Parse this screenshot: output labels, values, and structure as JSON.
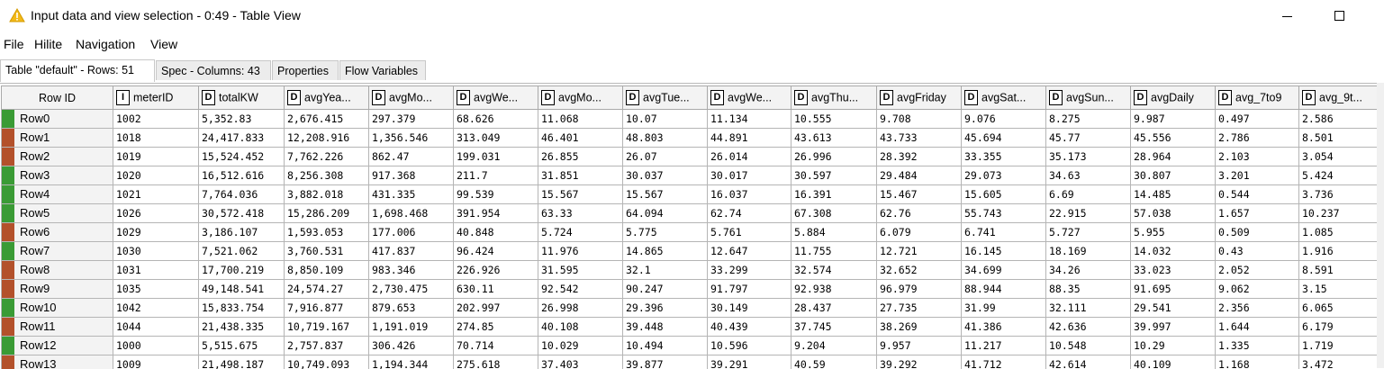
{
  "window": {
    "title": "Input data and view selection - 0:49 - Table View",
    "icon": "warning-triangle-icon"
  },
  "menu": [
    "File",
    "Hilite",
    "Navigation",
    "View"
  ],
  "tabs": [
    {
      "label": "Table \"default\" - Rows: 51",
      "active": true
    },
    {
      "label": "Spec - Columns: 43",
      "active": false
    },
    {
      "label": "Properties",
      "active": false
    },
    {
      "label": "Flow Variables",
      "active": false
    }
  ],
  "table": {
    "row_id_header": "Row ID",
    "columns": [
      {
        "type": "I",
        "label": "meterID"
      },
      {
        "type": "D",
        "label": "totalKW"
      },
      {
        "type": "D",
        "label": "avgYea..."
      },
      {
        "type": "D",
        "label": "avgMo..."
      },
      {
        "type": "D",
        "label": "avgWe..."
      },
      {
        "type": "D",
        "label": "avgMo..."
      },
      {
        "type": "D",
        "label": "avgTue..."
      },
      {
        "type": "D",
        "label": "avgWe..."
      },
      {
        "type": "D",
        "label": "avgThu..."
      },
      {
        "type": "D",
        "label": "avgFriday"
      },
      {
        "type": "D",
        "label": "avgSat..."
      },
      {
        "type": "D",
        "label": "avgSun..."
      },
      {
        "type": "D",
        "label": "avgDaily"
      },
      {
        "type": "D",
        "label": "avg_7to9"
      },
      {
        "type": "D",
        "label": "avg_9t..."
      }
    ],
    "colors": {
      "green": "#3a9b35",
      "orange": "#b3512b"
    },
    "rows": [
      {
        "id": "Row0",
        "color": "#3a9b35",
        "cells": [
          "1002",
          "5,352.83",
          "2,676.415",
          "297.379",
          "68.626",
          "11.068",
          "10.07",
          "11.134",
          "10.555",
          "9.708",
          "9.076",
          "8.275",
          "9.987",
          "0.497",
          "2.586"
        ]
      },
      {
        "id": "Row1",
        "color": "#b3512b",
        "cells": [
          "1018",
          "24,417.833",
          "12,208.916",
          "1,356.546",
          "313.049",
          "46.401",
          "48.803",
          "44.891",
          "43.613",
          "43.733",
          "45.694",
          "45.77",
          "45.556",
          "2.786",
          "8.501"
        ]
      },
      {
        "id": "Row2",
        "color": "#b3512b",
        "cells": [
          "1019",
          "15,524.452",
          "7,762.226",
          "862.47",
          "199.031",
          "26.855",
          "26.07",
          "26.014",
          "26.996",
          "28.392",
          "33.355",
          "35.173",
          "28.964",
          "2.103",
          "3.054"
        ]
      },
      {
        "id": "Row3",
        "color": "#3a9b35",
        "cells": [
          "1020",
          "16,512.616",
          "8,256.308",
          "917.368",
          "211.7",
          "31.851",
          "30.037",
          "30.017",
          "30.597",
          "29.484",
          "29.073",
          "34.63",
          "30.807",
          "3.201",
          "5.424"
        ]
      },
      {
        "id": "Row4",
        "color": "#3a9b35",
        "cells": [
          "1021",
          "7,764.036",
          "3,882.018",
          "431.335",
          "99.539",
          "15.567",
          "15.567",
          "16.037",
          "16.391",
          "15.467",
          "15.605",
          "6.69",
          "14.485",
          "0.544",
          "3.736"
        ]
      },
      {
        "id": "Row5",
        "color": "#3a9b35",
        "cells": [
          "1026",
          "30,572.418",
          "15,286.209",
          "1,698.468",
          "391.954",
          "63.33",
          "64.094",
          "62.74",
          "67.308",
          "62.76",
          "55.743",
          "22.915",
          "57.038",
          "1.657",
          "10.237"
        ]
      },
      {
        "id": "Row6",
        "color": "#b3512b",
        "cells": [
          "1029",
          "3,186.107",
          "1,593.053",
          "177.006",
          "40.848",
          "5.724",
          "5.775",
          "5.761",
          "5.884",
          "6.079",
          "6.741",
          "5.727",
          "5.955",
          "0.509",
          "1.085"
        ]
      },
      {
        "id": "Row7",
        "color": "#3a9b35",
        "cells": [
          "1030",
          "7,521.062",
          "3,760.531",
          "417.837",
          "96.424",
          "11.976",
          "14.865",
          "12.647",
          "11.755",
          "12.721",
          "16.145",
          "18.169",
          "14.032",
          "0.43",
          "1.916"
        ]
      },
      {
        "id": "Row8",
        "color": "#b3512b",
        "cells": [
          "1031",
          "17,700.219",
          "8,850.109",
          "983.346",
          "226.926",
          "31.595",
          "32.1",
          "33.299",
          "32.574",
          "32.652",
          "34.699",
          "34.26",
          "33.023",
          "2.052",
          "8.591"
        ]
      },
      {
        "id": "Row9",
        "color": "#b3512b",
        "cells": [
          "1035",
          "49,148.541",
          "24,574.27",
          "2,730.475",
          "630.11",
          "92.542",
          "90.247",
          "91.797",
          "92.938",
          "96.979",
          "88.944",
          "88.35",
          "91.695",
          "9.062",
          "3.15"
        ]
      },
      {
        "id": "Row10",
        "color": "#3a9b35",
        "cells": [
          "1042",
          "15,833.754",
          "7,916.877",
          "879.653",
          "202.997",
          "26.998",
          "29.396",
          "30.149",
          "28.437",
          "27.735",
          "31.99",
          "32.111",
          "29.541",
          "2.356",
          "6.065"
        ]
      },
      {
        "id": "Row11",
        "color": "#b3512b",
        "cells": [
          "1044",
          "21,438.335",
          "10,719.167",
          "1,191.019",
          "274.85",
          "40.108",
          "39.448",
          "40.439",
          "37.745",
          "38.269",
          "41.386",
          "42.636",
          "39.997",
          "1.644",
          "6.179"
        ]
      },
      {
        "id": "Row12",
        "color": "#3a9b35",
        "cells": [
          "1000",
          "5,515.675",
          "2,757.837",
          "306.426",
          "70.714",
          "10.029",
          "10.494",
          "10.596",
          "9.204",
          "9.957",
          "11.217",
          "10.548",
          "10.29",
          "1.335",
          "1.719"
        ]
      },
      {
        "id": "Row13",
        "color": "#b3512b",
        "cells": [
          "1009",
          "21,498.187",
          "10,749.093",
          "1,194.344",
          "275.618",
          "37.403",
          "39.877",
          "39.291",
          "40.59",
          "39.292",
          "41.712",
          "42.614",
          "40.109",
          "1.168",
          "3.472"
        ]
      }
    ]
  }
}
